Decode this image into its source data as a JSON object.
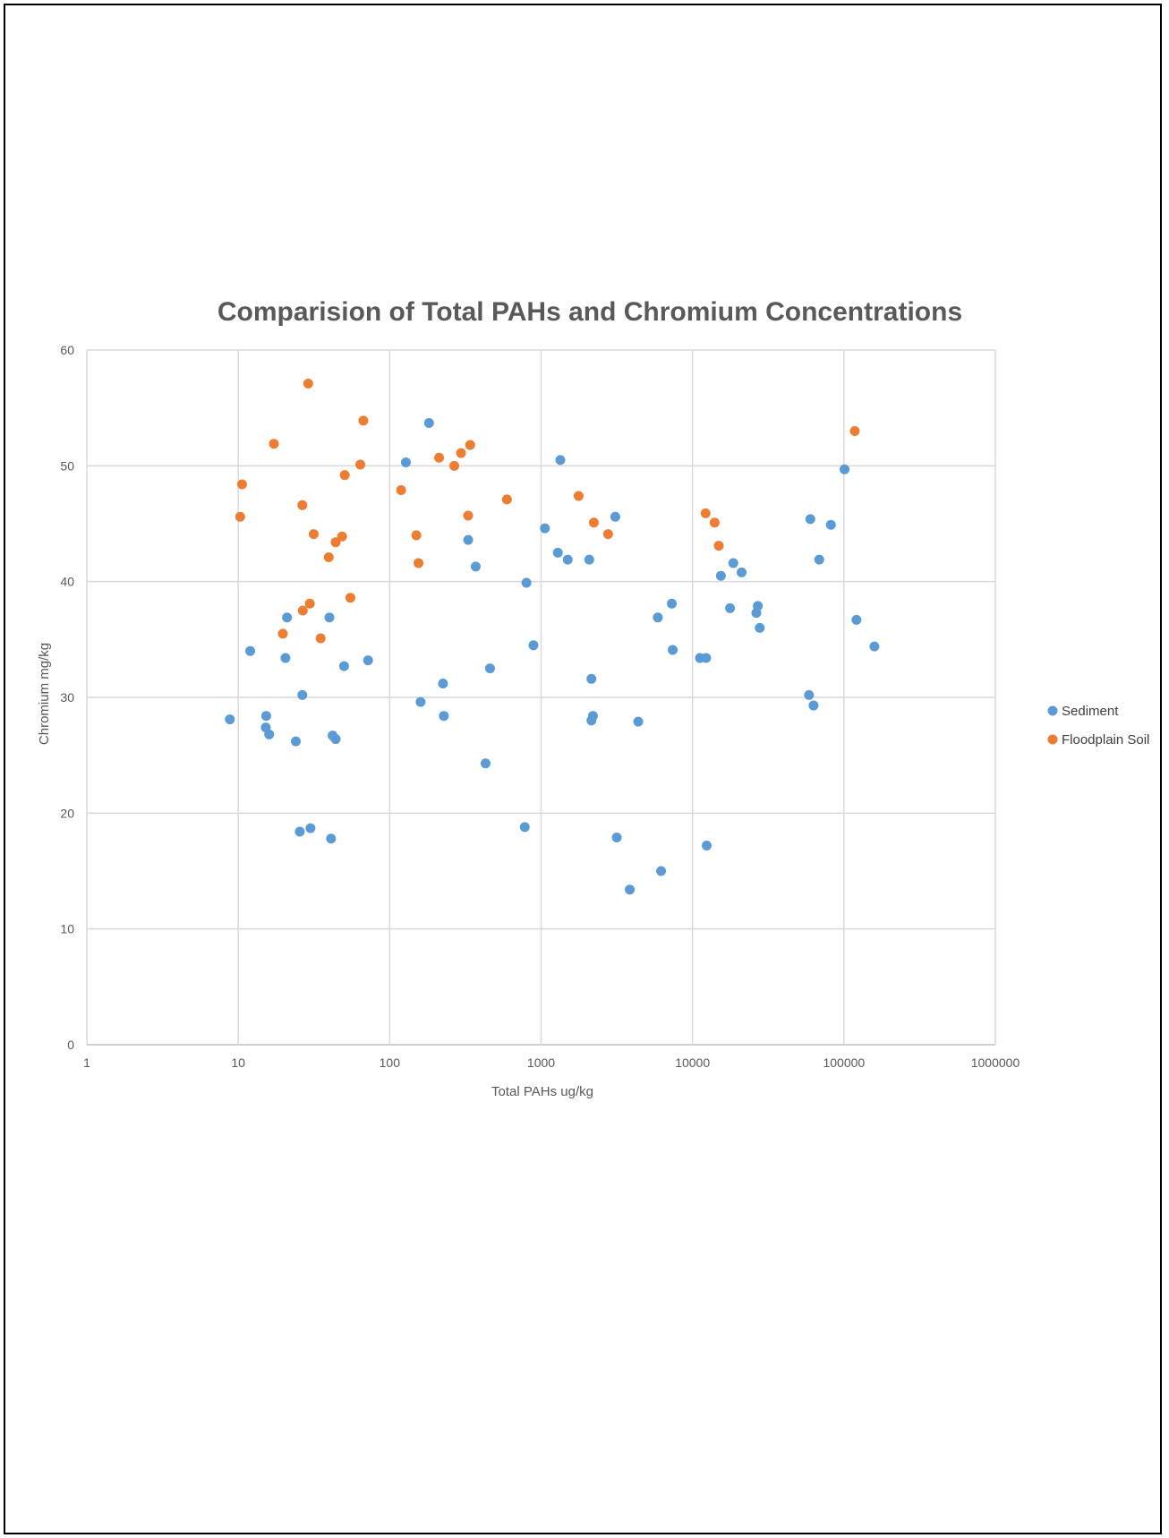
{
  "chart_data": {
    "type": "scatter",
    "title": "Comparision of Total PAHs and Chromium Concentrations",
    "xlabel": "Total PAHs ug/kg",
    "ylabel": "Chromium mg/kg",
    "xscale": "log",
    "xlim": [
      1,
      1000000
    ],
    "ylim": [
      0,
      60
    ],
    "xticks": [
      1,
      10,
      100,
      1000,
      10000,
      100000,
      1000000
    ],
    "xtick_labels": [
      "1",
      "10",
      "100",
      "1000",
      "10000",
      "100000",
      "1000000"
    ],
    "yticks": [
      0,
      10,
      20,
      30,
      40,
      50,
      60
    ],
    "ytick_labels": [
      "0",
      "10",
      "20",
      "30",
      "40",
      "50",
      "60"
    ],
    "grid": true,
    "legend": "right",
    "series": [
      {
        "name": "Sediment",
        "color": "#5B9BD5",
        "points": [
          [
            8.8,
            28.1
          ],
          [
            12,
            34
          ],
          [
            15.3,
            28.4
          ],
          [
            15.2,
            27.4
          ],
          [
            16,
            26.8
          ],
          [
            20.5,
            33.4
          ],
          [
            21,
            36.9
          ],
          [
            24,
            26.2
          ],
          [
            25.5,
            18.4
          ],
          [
            26.5,
            30.2
          ],
          [
            30,
            18.7
          ],
          [
            40,
            36.9
          ],
          [
            41,
            17.8
          ],
          [
            42,
            26.7
          ],
          [
            44,
            26.4
          ],
          [
            50,
            32.7
          ],
          [
            72,
            33.2
          ],
          [
            128,
            50.3
          ],
          [
            182,
            53.7
          ],
          [
            160,
            29.6
          ],
          [
            225,
            31.2
          ],
          [
            228,
            28.4
          ],
          [
            330,
            43.6
          ],
          [
            370,
            41.3
          ],
          [
            430,
            24.3
          ],
          [
            460,
            32.5
          ],
          [
            780,
            18.8
          ],
          [
            800,
            39.9
          ],
          [
            890,
            34.5
          ],
          [
            1060,
            44.6
          ],
          [
            1290,
            42.5
          ],
          [
            1340,
            50.5
          ],
          [
            1500,
            41.9
          ],
          [
            2080,
            41.9
          ],
          [
            2150,
            31.6
          ],
          [
            2150,
            28
          ],
          [
            2200,
            28.4
          ],
          [
            3090,
            45.6
          ],
          [
            3160,
            17.9
          ],
          [
            3850,
            13.4
          ],
          [
            4380,
            27.9
          ],
          [
            5900,
            36.9
          ],
          [
            6200,
            15
          ],
          [
            7300,
            38.1
          ],
          [
            7400,
            34.1
          ],
          [
            11200,
            33.4
          ],
          [
            12300,
            33.4
          ],
          [
            12400,
            17.2
          ],
          [
            15400,
            40.5
          ],
          [
            17700,
            37.7
          ],
          [
            18600,
            41.6
          ],
          [
            21100,
            40.8
          ],
          [
            26400,
            37.3
          ],
          [
            27000,
            37.9
          ],
          [
            27800,
            36
          ],
          [
            58800,
            30.2
          ],
          [
            60000,
            45.4
          ],
          [
            63000,
            29.3
          ],
          [
            68700,
            41.9
          ],
          [
            82000,
            44.9
          ],
          [
            101000,
            49.7
          ],
          [
            121000,
            36.7
          ],
          [
            159000,
            34.4
          ]
        ]
      },
      {
        "name": "Floodplain Soil",
        "color": "#ED7D31",
        "points": [
          [
            10.3,
            45.6
          ],
          [
            10.6,
            48.4
          ],
          [
            17.2,
            51.9
          ],
          [
            19.7,
            35.5
          ],
          [
            26.5,
            46.6
          ],
          [
            26.7,
            37.5
          ],
          [
            29,
            57.1
          ],
          [
            29.7,
            38.1
          ],
          [
            31.5,
            44.1
          ],
          [
            35,
            35.1
          ],
          [
            39.6,
            42.1
          ],
          [
            44,
            43.4
          ],
          [
            48.5,
            43.9
          ],
          [
            50.5,
            49.2
          ],
          [
            55,
            38.6
          ],
          [
            64,
            50.1
          ],
          [
            67,
            53.9
          ],
          [
            119,
            47.9
          ],
          [
            150,
            44
          ],
          [
            155,
            41.6
          ],
          [
            212,
            50.7
          ],
          [
            267,
            50
          ],
          [
            296,
            51.1
          ],
          [
            330,
            45.7
          ],
          [
            340,
            51.8
          ],
          [
            595,
            47.1
          ],
          [
            1770,
            47.4
          ],
          [
            2230,
            45.1
          ],
          [
            2770,
            44.1
          ],
          [
            12200,
            45.9
          ],
          [
            14000,
            45.1
          ],
          [
            14900,
            43.1
          ],
          [
            118000,
            53
          ]
        ]
      }
    ]
  }
}
